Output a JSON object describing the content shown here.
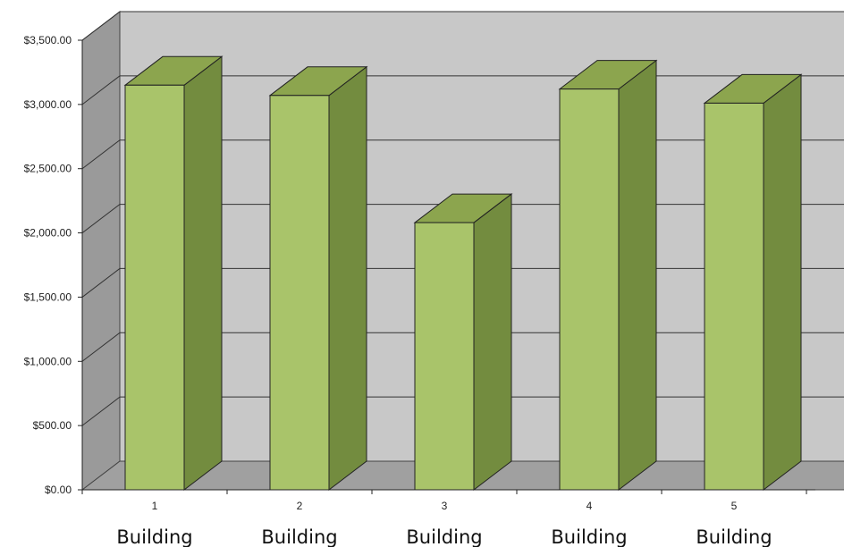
{
  "chart_data": {
    "type": "bar",
    "categories": [
      "1",
      "2",
      "3",
      "4",
      "5"
    ],
    "category_suffix": [
      "Building",
      "Building",
      "Building",
      "Building",
      "Building"
    ],
    "values": [
      3150,
      3070,
      2080,
      3120,
      3010
    ],
    "yticks": [
      "$0.00",
      "$500.00",
      "$1,000.00",
      "$1,500.00",
      "$2,000.00",
      "$2,500.00",
      "$3,000.00",
      "$3,500.00"
    ],
    "ylim": [
      0,
      3500
    ],
    "grid": true,
    "style_3d": true,
    "colors": {
      "bar_front": "#a9c46a",
      "bar_side": "#738c3f",
      "bar_top": "#8ca54e",
      "back_wall": "#c8c8c8",
      "side_wall": "#9a9a9a",
      "floor": "#a0a0a0"
    }
  }
}
